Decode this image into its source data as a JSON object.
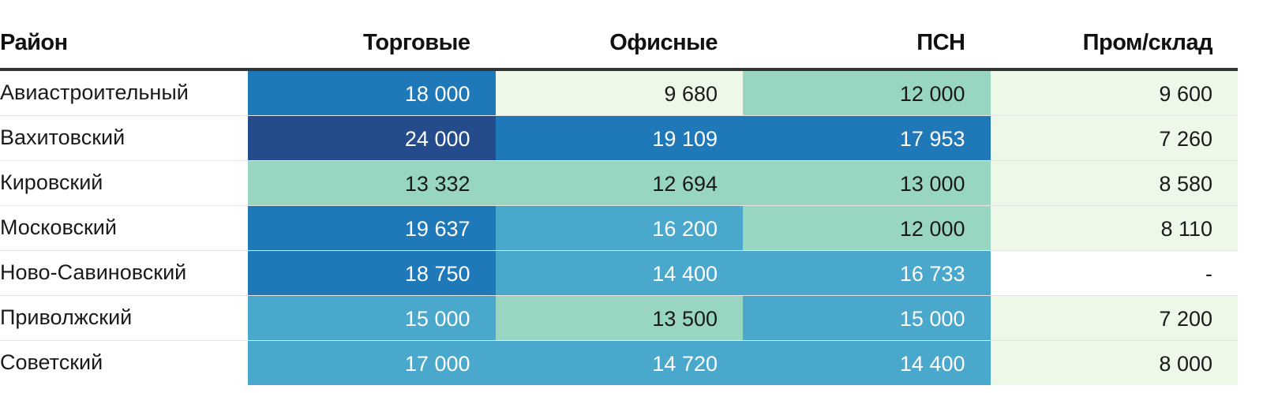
{
  "chart_data": {
    "type": "heatmap",
    "columns": [
      "Район",
      "Торговые",
      "Офисные",
      "ПСН",
      "Пром/склад"
    ],
    "rows": [
      {
        "district": "Авиастроительный",
        "values": [
          18000,
          9680,
          12000,
          9600
        ],
        "labels": [
          "18 000",
          "9 680",
          "12 000",
          "9 600"
        ]
      },
      {
        "district": "Вахитовский",
        "values": [
          24000,
          19109,
          17953,
          7260
        ],
        "labels": [
          "24 000",
          "19 109",
          "17 953",
          "7 260"
        ]
      },
      {
        "district": "Кировский",
        "values": [
          13332,
          12694,
          13000,
          8580
        ],
        "labels": [
          "13 332",
          "12 694",
          "13 000",
          "8 580"
        ]
      },
      {
        "district": "Московский",
        "values": [
          19637,
          16200,
          12000,
          8110
        ],
        "labels": [
          "19 637",
          "16 200",
          "12 000",
          "8 110"
        ]
      },
      {
        "district": "Ново-Савиновский",
        "values": [
          18750,
          14400,
          16733,
          null
        ],
        "labels": [
          "18 750",
          "14 400",
          "16 733",
          "-"
        ]
      },
      {
        "district": "Приволжский",
        "values": [
          15000,
          13500,
          15000,
          7200
        ],
        "labels": [
          "15 000",
          "13 500",
          "15 000",
          "7 200"
        ]
      },
      {
        "district": "Советский",
        "values": [
          17000,
          14720,
          14400,
          8000
        ],
        "labels": [
          "17 000",
          "14 720",
          "14 400",
          "8 000"
        ]
      }
    ],
    "color_scale": {
      "thresholds": [
        11000,
        14000,
        17500,
        22000
      ],
      "colors": [
        "#eef8e8",
        "#98d6c1",
        "#4aa8cc",
        "#1f78b8",
        "#244b8c"
      ],
      "text_colors": [
        "#1a1a1a",
        "#1a1a1a",
        "#ffffff",
        "#ffffff",
        "#ffffff"
      ],
      "missing_color": "#ffffff"
    }
  }
}
